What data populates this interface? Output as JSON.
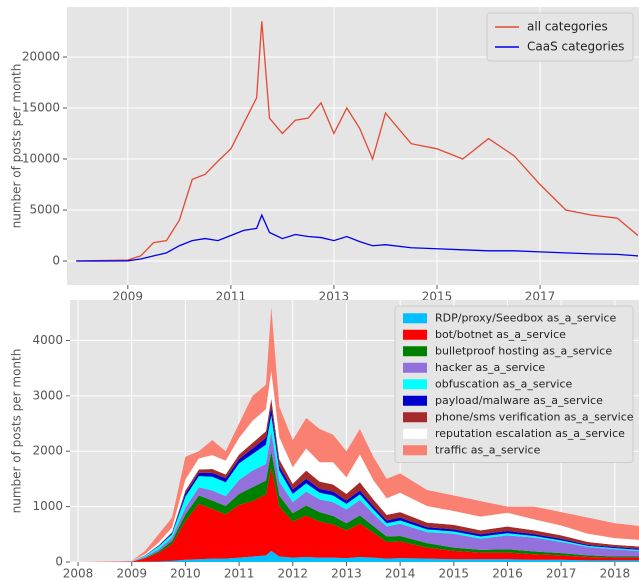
{
  "chart_data": [
    {
      "type": "line",
      "ylabel": "number of posts per month",
      "xlim": [
        2007.82,
        2018.92
      ],
      "xticks": [
        2009,
        2011,
        2013,
        2015,
        2017
      ],
      "ylim": [
        -2350,
        24900
      ],
      "yticks": [
        0,
        5000,
        10000,
        15000,
        20000
      ],
      "grid": true,
      "legend": "upper right",
      "x": [
        2008,
        2008.5,
        2009,
        2009.25,
        2009.5,
        2009.75,
        2010,
        2010.25,
        2010.5,
        2010.75,
        2011,
        2011.25,
        2011.5,
        2011.6,
        2011.75,
        2012,
        2012.25,
        2012.5,
        2012.75,
        2013,
        2013.25,
        2013.5,
        2013.75,
        2014,
        2014.5,
        2015,
        2015.5,
        2016,
        2016.5,
        2017,
        2017.5,
        2018,
        2018.5,
        2018.9
      ],
      "series": [
        {
          "name": "all categories",
          "color": "#e24a33",
          "values": [
            0,
            50,
            100,
            500,
            1800,
            2000,
            4000,
            8000,
            8500,
            9800,
            11000,
            13500,
            16000,
            23500,
            14000,
            12500,
            13800,
            14000,
            15500,
            12500,
            15000,
            13000,
            10000,
            14500,
            11500,
            11000,
            10000,
            12000,
            10300,
            7500,
            5000,
            4500,
            4200,
            2500
          ]
        },
        {
          "name": "CaaS categories",
          "color": "#0000ee",
          "values": [
            0,
            10,
            20,
            200,
            500,
            800,
            1500,
            2000,
            2200,
            2000,
            2500,
            3000,
            3200,
            4500,
            2800,
            2200,
            2600,
            2400,
            2300,
            2000,
            2400,
            1900,
            1500,
            1600,
            1300,
            1200,
            1100,
            1000,
            1000,
            900,
            800,
            700,
            650,
            500
          ]
        }
      ]
    },
    {
      "type": "area",
      "ylabel": "number of posts per month",
      "xlim": [
        2007.85,
        2018.45
      ],
      "xticks": [
        2008,
        2009,
        2010,
        2011,
        2012,
        2013,
        2014,
        2015,
        2016,
        2017,
        2018
      ],
      "ylim": [
        0,
        4730
      ],
      "yticks": [
        0,
        1000,
        2000,
        3000,
        4000
      ],
      "grid": true,
      "legend": "upper right",
      "x": [
        2008,
        2008.5,
        2009,
        2009.25,
        2009.5,
        2009.75,
        2010,
        2010.25,
        2010.5,
        2010.75,
        2011,
        2011.25,
        2011.5,
        2011.6,
        2011.75,
        2012,
        2012.25,
        2012.5,
        2012.75,
        2013,
        2013.25,
        2013.5,
        2013.75,
        2014,
        2014.5,
        2015,
        2015.5,
        2016,
        2016.5,
        2017,
        2017.5,
        2018,
        2018.45
      ],
      "series": [
        {
          "name": "RDP/proxy/Seedbox as_a_service",
          "color": "#00bfff",
          "values": [
            0,
            0,
            0,
            5,
            10,
            20,
            40,
            50,
            60,
            60,
            80,
            100,
            120,
            200,
            100,
            80,
            90,
            80,
            80,
            70,
            90,
            80,
            60,
            70,
            60,
            50,
            50,
            50,
            40,
            40,
            30,
            30,
            30
          ]
        },
        {
          "name": "bot/botnet as_a_service",
          "color": "#ff0000",
          "values": [
            0,
            0,
            5,
            60,
            150,
            300,
            700,
            1000,
            900,
            800,
            950,
            1000,
            1100,
            1500,
            900,
            650,
            750,
            650,
            600,
            500,
            600,
            450,
            300,
            300,
            200,
            150,
            120,
            120,
            100,
            80,
            60,
            50,
            50
          ]
        },
        {
          "name": "bulletproof hosting as_a_service",
          "color": "#008000",
          "values": [
            0,
            0,
            0,
            10,
            30,
            60,
            120,
            150,
            150,
            150,
            200,
            250,
            250,
            300,
            200,
            150,
            180,
            170,
            150,
            130,
            150,
            120,
            100,
            100,
            80,
            60,
            50,
            60,
            50,
            40,
            30,
            20,
            20
          ]
        },
        {
          "name": "hacker as_a_service",
          "color": "#9370db",
          "values": [
            0,
            0,
            2,
            20,
            40,
            60,
            120,
            150,
            180,
            180,
            250,
            300,
            300,
            350,
            250,
            200,
            250,
            230,
            250,
            250,
            280,
            220,
            180,
            220,
            200,
            250,
            200,
            250,
            250,
            200,
            150,
            130,
            100
          ]
        },
        {
          "name": "obfuscation as_a_service",
          "color": "#00ffff",
          "values": [
            0,
            0,
            2,
            20,
            50,
            60,
            200,
            200,
            250,
            250,
            300,
            300,
            350,
            300,
            200,
            150,
            150,
            120,
            120,
            100,
            100,
            80,
            60,
            60,
            50,
            40,
            40,
            40,
            30,
            30,
            20,
            20,
            20
          ]
        },
        {
          "name": "payload/malware as_a_service",
          "color": "#0000cd",
          "values": [
            0,
            0,
            1,
            5,
            10,
            20,
            60,
            60,
            70,
            70,
            80,
            100,
            120,
            150,
            80,
            80,
            80,
            70,
            70,
            60,
            70,
            60,
            50,
            50,
            40,
            40,
            40,
            40,
            30,
            30,
            20,
            20,
            20
          ]
        },
        {
          "name": "phone/sms verification as_a_service",
          "color": "#a52a2a",
          "values": [
            0,
            0,
            1,
            5,
            10,
            20,
            50,
            60,
            70,
            70,
            80,
            100,
            120,
            150,
            120,
            100,
            150,
            130,
            130,
            120,
            150,
            120,
            100,
            100,
            80,
            80,
            70,
            80,
            70,
            60,
            50,
            40,
            40
          ]
        },
        {
          "name": "reputation escalation  as_a_service",
          "color": "#ffffff",
          "values": [
            0,
            0,
            2,
            20,
            50,
            80,
            200,
            200,
            250,
            250,
            300,
            400,
            400,
            500,
            400,
            300,
            400,
            350,
            400,
            300,
            500,
            350,
            300,
            350,
            300,
            250,
            250,
            250,
            200,
            180,
            150,
            120,
            120
          ]
        },
        {
          "name": "traffic as_a_service",
          "color": "#fa8072",
          "values": [
            0,
            10,
            7,
            55,
            150,
            180,
            410,
            130,
            270,
            170,
            260,
            450,
            440,
            1150,
            550,
            490,
            550,
            600,
            500,
            470,
            460,
            420,
            350,
            350,
            290,
            280,
            280,
            110,
            230,
            240,
            290,
            270,
            250
          ]
        }
      ]
    }
  ]
}
